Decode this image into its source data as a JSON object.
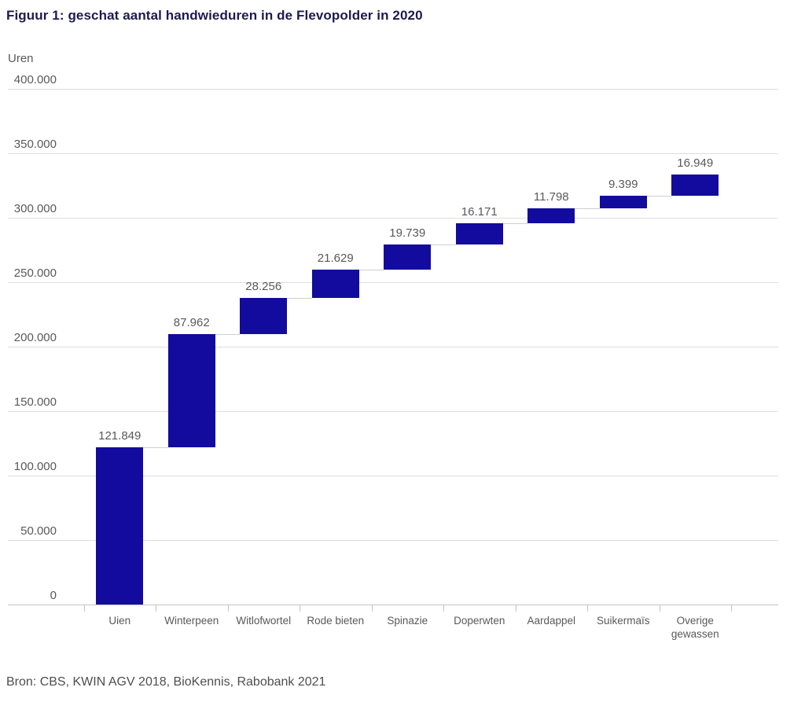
{
  "title": "Figuur 1: geschat aantal handwieduren in de Flevopolder in 2020",
  "y_axis_label": "Uren",
  "source": "Bron: CBS, KWIN AGV 2018, BioKennis, Rabobank 2021",
  "colors": {
    "title": "#1e1a4f",
    "bar": "#120b9e",
    "gridline": "#dedede",
    "axis_line": "#c4c4c4",
    "tick": "#c4c4c4",
    "connector": "#cfcfcf",
    "text_gray": "#595959",
    "source_text": "#4f4f4f"
  },
  "chart_data": {
    "type": "bar",
    "subtype": "waterfall",
    "title": "Figuur 1: geschat aantal handwieduren in de Flevopolder in 2020",
    "xlabel": "",
    "ylabel": "Uren",
    "ylim": [
      0,
      400000
    ],
    "grid": true,
    "legend": "none",
    "categories": [
      "Uien",
      "Winterpeen",
      "Witlofwortel",
      "Rode bieten",
      "Spinazie",
      "Doperwten",
      "Aardappel",
      "Suikermaïs",
      "Overige gewassen"
    ],
    "values": [
      121849,
      87962,
      28256,
      21629,
      19739,
      16171,
      11798,
      9399,
      16949
    ],
    "value_labels": [
      "121.849",
      "87.962",
      "28.256",
      "21.629",
      "19.739",
      "16.171",
      "11.798",
      "9.399",
      "16.949"
    ],
    "cumulative_start": [
      0,
      121849,
      209811,
      238067,
      259696,
      279435,
      295606,
      307404,
      316803
    ],
    "cumulative_end": [
      121849,
      209811,
      238067,
      259696,
      279435,
      295606,
      307404,
      316803,
      333752
    ],
    "yticks": [
      {
        "value": 0,
        "label": "0"
      },
      {
        "value": 50000,
        "label": "50.000"
      },
      {
        "value": 100000,
        "label": "100.000"
      },
      {
        "value": 150000,
        "label": "150.000"
      },
      {
        "value": 200000,
        "label": "200.000"
      },
      {
        "value": 250000,
        "label": "250.000"
      },
      {
        "value": 300000,
        "label": "300.000"
      },
      {
        "value": 350000,
        "label": "350.000"
      },
      {
        "value": 400000,
        "label": "400.000"
      }
    ],
    "source": "Bron: CBS, KWIN AGV 2018, BioKennis, Rabobank 2021"
  }
}
